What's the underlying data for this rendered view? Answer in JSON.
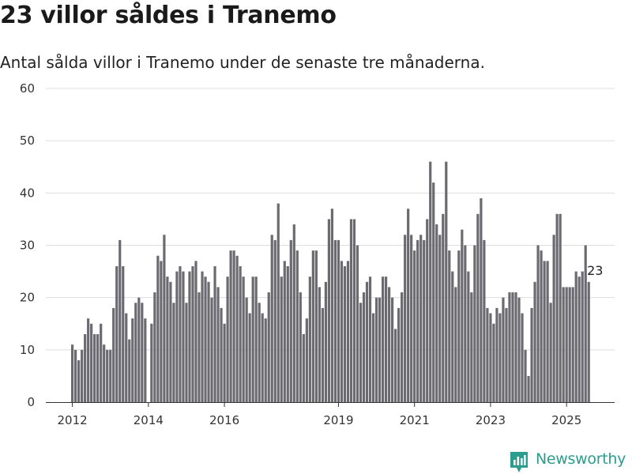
{
  "header": {
    "title": "23 villor såldes i Tranemo",
    "subtitle": "Antal sålda villor i Tranemo under de senaste tre månaderna."
  },
  "brand": {
    "name": "Newsworthy",
    "icon": "newsworthy-logo-icon"
  },
  "colors": {
    "bar": "#6b6a70",
    "highlight": "#1f9a93",
    "grid": "#dddddd",
    "brand": "#2a9d8f"
  },
  "chart_data": {
    "type": "bar",
    "title": "23 villor såldes i Tranemo",
    "subtitle": "Antal sålda villor i Tranemo under de senaste tre månaderna.",
    "xlabel": "",
    "ylabel": "",
    "ylim": [
      0,
      60
    ],
    "yticks": [
      0,
      10,
      20,
      30,
      40,
      50,
      60
    ],
    "xticks": [
      {
        "label": "2012",
        "index": 0
      },
      {
        "label": "2014",
        "index": 24
      },
      {
        "label": "2016",
        "index": 48
      },
      {
        "label": "2019",
        "index": 84
      },
      {
        "label": "2021",
        "index": 108
      },
      {
        "label": "2023",
        "index": 132
      },
      {
        "label": "2025",
        "index": 156
      }
    ],
    "grid": true,
    "legend": "none",
    "start_month": "2012-01",
    "values": [
      11,
      10,
      8,
      10,
      13,
      16,
      15,
      13,
      13,
      15,
      11,
      10,
      10,
      18,
      26,
      31,
      26,
      17,
      12,
      16,
      19,
      20,
      19,
      16,
      0,
      15,
      21,
      28,
      27,
      32,
      24,
      23,
      19,
      25,
      26,
      25,
      19,
      25,
      26,
      27,
      21,
      25,
      24,
      23,
      20,
      26,
      22,
      18,
      15,
      24,
      29,
      29,
      28,
      26,
      24,
      20,
      17,
      24,
      24,
      19,
      17,
      16,
      21,
      32,
      31,
      38,
      24,
      27,
      26,
      31,
      34,
      29,
      21,
      13,
      16,
      24,
      29,
      29,
      22,
      18,
      23,
      35,
      37,
      31,
      31,
      27,
      26,
      27,
      35,
      35,
      30,
      19,
      21,
      23,
      24,
      17,
      20,
      20,
      24,
      24,
      22,
      20,
      14,
      18,
      21,
      32,
      37,
      32,
      29,
      31,
      32,
      31,
      35,
      46,
      42,
      34,
      32,
      36,
      46,
      29,
      25,
      22,
      29,
      33,
      30,
      25,
      21,
      30,
      36,
      39,
      31,
      18,
      17,
      15,
      18,
      17,
      20,
      18,
      21,
      21,
      21,
      20,
      17,
      10,
      5,
      18,
      23,
      30,
      29,
      27,
      27,
      19,
      32,
      36,
      36,
      22,
      22,
      22,
      22,
      25,
      24,
      25,
      30,
      23
    ],
    "highlight": {
      "index": 165,
      "value": 23,
      "label": "23"
    }
  }
}
